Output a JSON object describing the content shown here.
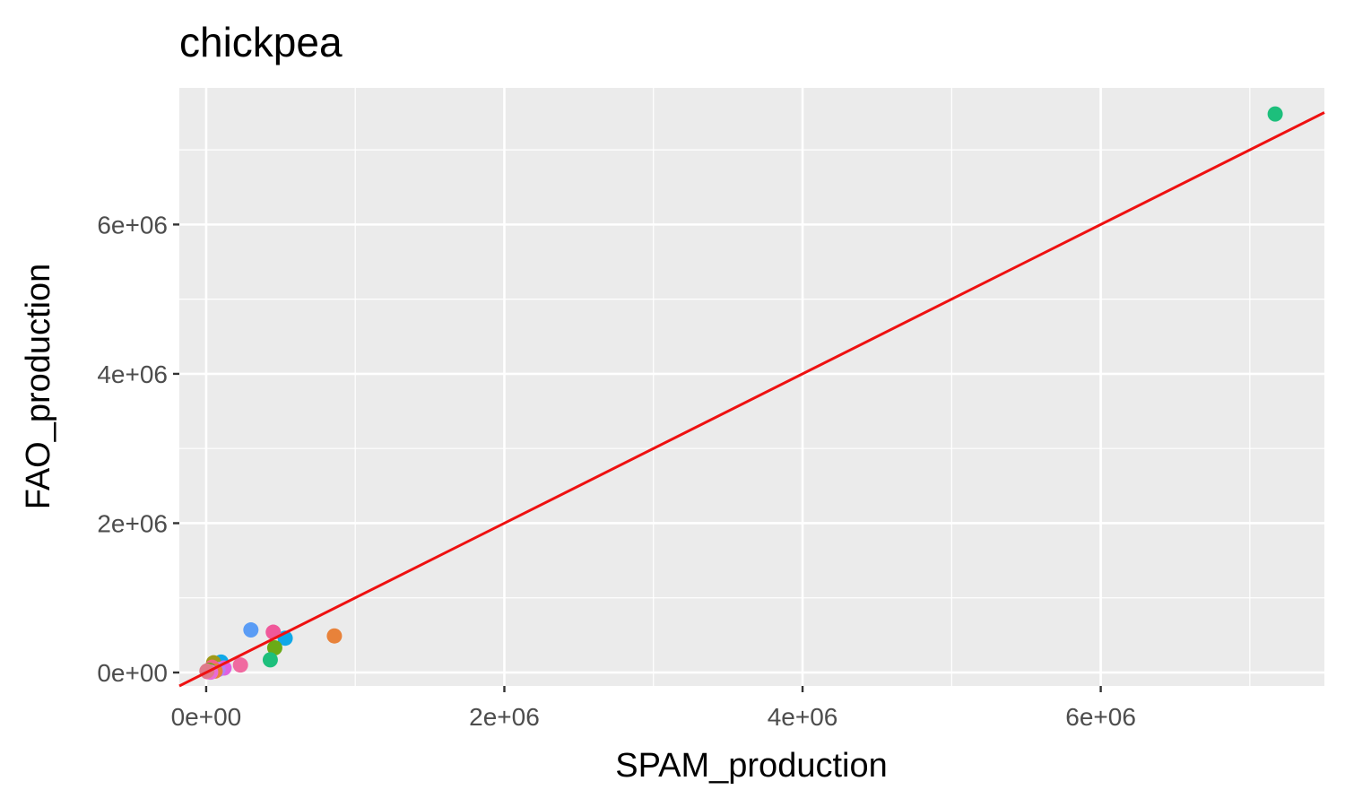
{
  "chart_data": {
    "type": "scatter",
    "title": "chickpea",
    "xlabel": "SPAM_production",
    "ylabel": "FAO_production",
    "xlim": [
      -180000,
      7500000
    ],
    "ylim": [
      -180000,
      7830000
    ],
    "x_ticks": [
      0,
      2000000,
      4000000,
      6000000
    ],
    "x_tick_labels": [
      "0e+00",
      "2e+06",
      "4e+06",
      "6e+06"
    ],
    "y_ticks": [
      0,
      2000000,
      4000000,
      6000000
    ],
    "y_tick_labels": [
      "0e+00",
      "2e+06",
      "4e+06",
      "6e+06"
    ],
    "grid": true,
    "legend": "none",
    "panel_background": "#ebebeb",
    "reference_line": {
      "slope": 1,
      "intercept": 0,
      "color": "#ee1111"
    },
    "points": [
      {
        "x": 7170000,
        "y": 7480000,
        "color": "#1dbf7c"
      },
      {
        "x": 860000,
        "y": 490000,
        "color": "#e8823a"
      },
      {
        "x": 530000,
        "y": 460000,
        "color": "#10a8e8"
      },
      {
        "x": 450000,
        "y": 540000,
        "color": "#f0589a"
      },
      {
        "x": 300000,
        "y": 570000,
        "color": "#5a9cf5"
      },
      {
        "x": 460000,
        "y": 330000,
        "color": "#6aab16"
      },
      {
        "x": 430000,
        "y": 170000,
        "color": "#1dbf7c"
      },
      {
        "x": 230000,
        "y": 100000,
        "color": "#f06aa0"
      },
      {
        "x": 100000,
        "y": 140000,
        "color": "#10a8e8"
      },
      {
        "x": 50000,
        "y": 130000,
        "color": "#a09a18"
      },
      {
        "x": 120000,
        "y": 60000,
        "color": "#e060e0"
      },
      {
        "x": 80000,
        "y": 40000,
        "color": "#b37ff5"
      },
      {
        "x": 40000,
        "y": 70000,
        "color": "#f5608a"
      },
      {
        "x": 60000,
        "y": 20000,
        "color": "#e8823a"
      },
      {
        "x": 20000,
        "y": 30000,
        "color": "#6aab16"
      },
      {
        "x": 10000,
        "y": 10000,
        "color": "#f0589a"
      },
      {
        "x": 30000,
        "y": 5000,
        "color": "#ea6ad6"
      },
      {
        "x": 5000,
        "y": 20000,
        "color": "#e07a8a"
      }
    ]
  }
}
